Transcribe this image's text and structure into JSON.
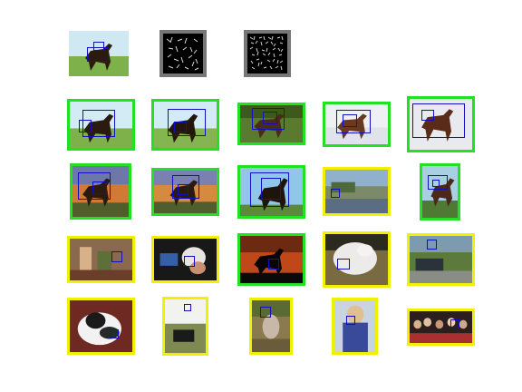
{
  "figure": {
    "frame_colors": {
      "correct": "#22e022",
      "incorrect": "#f0f000",
      "detection_box": "#1010c0",
      "hog_border": "#777777"
    },
    "query_row": {
      "items": [
        {
          "kind": "photo",
          "scene": "horse"
        },
        {
          "kind": "hog"
        },
        {
          "kind": "hog"
        }
      ]
    },
    "results": [
      {
        "rank": 1,
        "scene": "horse",
        "frame": "correct"
      },
      {
        "rank": 2,
        "scene": "horse",
        "frame": "correct"
      },
      {
        "rank": 3,
        "scene": "horse-dark",
        "frame": "correct"
      },
      {
        "rank": 4,
        "scene": "horse-snow",
        "frame": "correct"
      },
      {
        "rank": 5,
        "scene": "horse-snow",
        "frame": "correct"
      },
      {
        "rank": 6,
        "scene": "horse-sunset",
        "frame": "correct"
      },
      {
        "rank": 7,
        "scene": "horse-sunset",
        "frame": "correct"
      },
      {
        "rank": 8,
        "scene": "horse-sky",
        "frame": "correct"
      },
      {
        "rank": 9,
        "scene": "lake",
        "frame": "incorrect"
      },
      {
        "rank": 10,
        "scene": "horse-sky",
        "frame": "correct"
      },
      {
        "rank": 11,
        "scene": "room",
        "frame": "incorrect"
      },
      {
        "rank": 12,
        "scene": "people",
        "frame": "incorrect"
      },
      {
        "rank": 13,
        "scene": "horse-red",
        "frame": "correct"
      },
      {
        "rank": 14,
        "scene": "dog",
        "frame": "incorrect"
      },
      {
        "rank": 15,
        "scene": "car",
        "frame": "incorrect"
      },
      {
        "rank": 16,
        "scene": "cat",
        "frame": "incorrect"
      },
      {
        "rank": 17,
        "scene": "garden",
        "frame": "incorrect"
      },
      {
        "rank": 18,
        "scene": "forest",
        "frame": "incorrect"
      },
      {
        "rank": 19,
        "scene": "person",
        "frame": "incorrect"
      },
      {
        "rank": 20,
        "scene": "crowd",
        "frame": "incorrect"
      }
    ]
  }
}
